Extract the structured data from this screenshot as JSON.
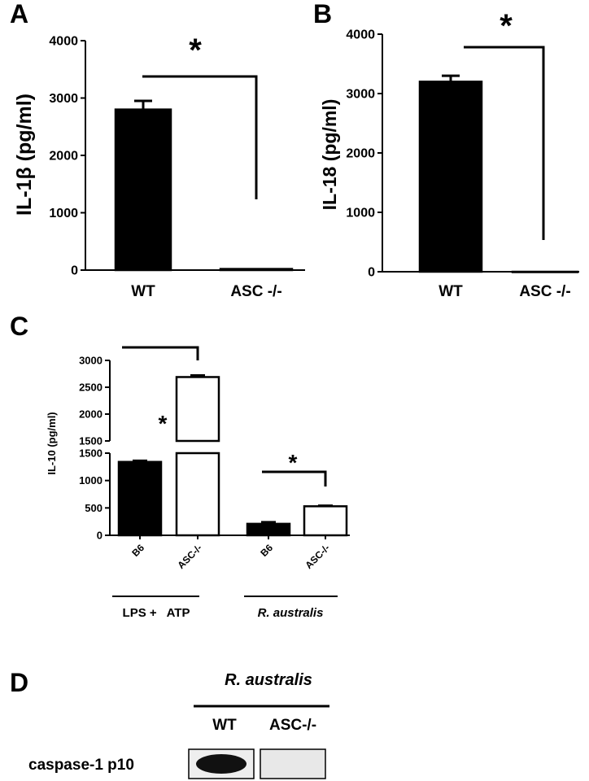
{
  "chart_data": [
    {
      "type": "bar",
      "label": "A",
      "ylabel": "IL-1β (pg/ml)",
      "categories": [
        "WT",
        "ASC -/-"
      ],
      "values": [
        2800,
        20
      ],
      "errors": [
        150,
        0
      ],
      "colors": [
        "#000000",
        "#000000"
      ],
      "ylim": [
        0,
        4000
      ],
      "yticks": [
        0,
        1000,
        2000,
        3000,
        4000
      ],
      "annotations": [
        "*"
      ]
    },
    {
      "type": "bar",
      "label": "B",
      "ylabel": "IL-18 (pg/ml)",
      "categories": [
        "WT",
        "ASC -/-"
      ],
      "values": [
        3200,
        0
      ],
      "errors": [
        100,
        0
      ],
      "colors": [
        "#000000",
        "#000000"
      ],
      "ylim": [
        0,
        4000
      ],
      "yticks": [
        0,
        1000,
        2000,
        3000,
        4000
      ],
      "annotations": [
        "*"
      ]
    },
    {
      "type": "broken-bar",
      "label": "C",
      "ylabel": "IL-10 (pg/ml)",
      "categories": [
        "B6",
        "ASC-/-",
        "B6",
        "ASC-/-"
      ],
      "groups": [
        "LPS +   ATP",
        "R. australis"
      ],
      "values": [
        1340,
        2690,
        210,
        530
      ],
      "errors": [
        20,
        30,
        30,
        10
      ],
      "colors": [
        "#000000",
        "#ffffff",
        "#000000",
        "#ffffff"
      ],
      "segments": [
        {
          "ylim": [
            0,
            1500
          ],
          "yticks": [
            0,
            500,
            1000,
            1500
          ]
        },
        {
          "ylim": [
            1500,
            3000
          ],
          "yticks": [
            1500,
            2000,
            2500,
            3000
          ]
        }
      ],
      "annotations": [
        "*",
        "*"
      ]
    }
  ],
  "blot": {
    "label": "D",
    "title": "R. australis",
    "columns": [
      "WT",
      "ASC-/-"
    ],
    "row_label": "caspase-1 p10"
  }
}
